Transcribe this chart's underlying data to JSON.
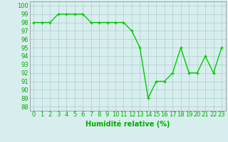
{
  "x": [
    0,
    1,
    2,
    3,
    4,
    5,
    6,
    7,
    8,
    9,
    10,
    11,
    12,
    13,
    14,
    15,
    16,
    17,
    18,
    19,
    20,
    21,
    22,
    23
  ],
  "y": [
    98,
    98,
    98,
    99,
    99,
    99,
    99,
    98,
    98,
    98,
    98,
    98,
    97,
    95,
    89,
    91,
    91,
    92,
    95,
    92,
    92,
    94,
    92,
    95
  ],
  "line_color": "#00cc00",
  "marker": "+",
  "marker_size": 3.5,
  "background_color": "#d8eeee",
  "grid_color": "#aacccc",
  "xlabel": "Humidité relative (%)",
  "xlabel_color": "#00aa00",
  "xlabel_fontsize": 7,
  "ylabel_ticks": [
    88,
    89,
    90,
    91,
    92,
    93,
    94,
    95,
    96,
    97,
    98,
    99,
    100
  ],
  "ylim": [
    87.5,
    100.5
  ],
  "xlim": [
    -0.5,
    23.5
  ],
  "tick_fontsize": 6,
  "tick_color": "#00aa00",
  "spine_color": "#888888"
}
